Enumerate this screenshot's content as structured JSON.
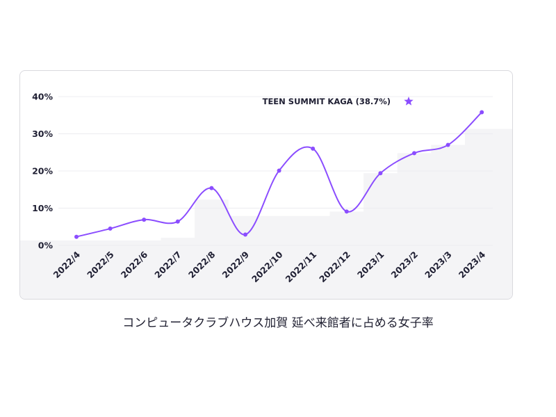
{
  "caption": "コンピュータクラブハウス加賀 延べ来館者に占める女子率",
  "colors": {
    "line": "#8b4dff",
    "marker": "#8b4dff",
    "shade": "#f4f4f6",
    "grid": "#ececf0",
    "text": "#1f1f33"
  },
  "chart_data": {
    "type": "line",
    "categories": [
      "2022/4",
      "2022/5",
      "2022/6",
      "2022/7",
      "2022/8",
      "2022/9",
      "2022/10",
      "2022/11",
      "2022/12",
      "2023/1",
      "2023/2",
      "2023/3",
      "2023/4"
    ],
    "values": [
      2.3,
      4.5,
      6.9,
      6.4,
      15.4,
      2.9,
      20.1,
      26.0,
      9.1,
      19.4,
      24.8,
      27.0,
      35.8
    ],
    "shaded_levels": [
      1.3,
      1.3,
      1.3,
      2.0,
      12.3,
      7.9,
      7.9,
      7.9,
      9.1,
      19.4,
      24.8,
      27.0,
      31.3
    ],
    "yticks": [
      "0%",
      "10%",
      "20%",
      "30%",
      "40%"
    ],
    "ytick_values": [
      0,
      10,
      20,
      30,
      40
    ],
    "ylim": [
      0,
      40
    ],
    "grid": true,
    "legend": "none",
    "annotation": {
      "label": "TEEN SUMMIT KAGA (38.7%)",
      "icon": "star-icon",
      "value": 38.7
    }
  }
}
